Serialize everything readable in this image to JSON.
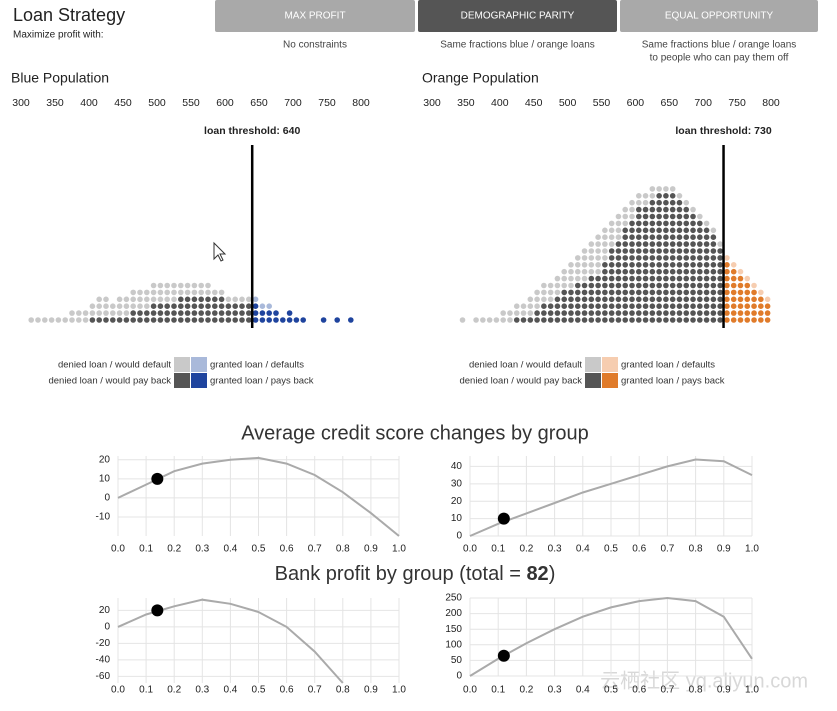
{
  "header": {
    "title": "Loan Strategy",
    "subtitle": "Maximize profit with:"
  },
  "buttons": [
    {
      "label": "MAX PROFIT",
      "description": [
        "No constraints"
      ]
    },
    {
      "label": "DEMOGRAPHIC PARITY",
      "description": [
        "Same fractions blue / orange loans"
      ]
    },
    {
      "label": "EQUAL OPPORTUNITY",
      "description": [
        "Same fractions blue / orange loans",
        "to people who can pay them off"
      ]
    }
  ],
  "active_button": 1,
  "populations": [
    {
      "name": "Blue Population",
      "xlim": [
        300,
        800
      ],
      "xticks": [
        300,
        350,
        400,
        450,
        500,
        550,
        600,
        650,
        700,
        750,
        800
      ],
      "threshold": 640,
      "threshold_label": "loan threshold: 640",
      "scores": [
        315,
        325,
        335,
        345,
        355,
        365,
        375,
        385,
        395,
        405,
        415,
        425,
        435,
        445,
        455,
        465,
        475,
        485,
        495,
        505,
        515,
        525,
        535,
        545,
        555,
        565,
        575,
        585,
        595,
        605,
        615,
        625,
        635,
        645,
        655,
        665,
        675,
        685,
        695,
        705,
        715,
        725,
        735,
        745,
        755,
        765,
        775,
        785
      ],
      "repay": [
        0,
        0,
        0,
        0,
        0,
        0,
        0,
        0,
        0,
        1,
        1,
        1,
        1,
        1,
        1,
        2,
        2,
        2,
        3,
        3,
        3,
        3,
        4,
        4,
        4,
        4,
        4,
        4,
        4,
        3,
        3,
        3,
        3,
        3,
        2,
        2,
        2,
        1,
        2,
        1,
        1,
        0,
        0,
        1,
        0,
        1,
        0,
        1
      ],
      "default": [
        1,
        1,
        1,
        1,
        1,
        1,
        2,
        2,
        2,
        2,
        3,
        3,
        2,
        3,
        3,
        3,
        3,
        3,
        3,
        3,
        3,
        3,
        2,
        2,
        2,
        2,
        2,
        1,
        1,
        1,
        1,
        1,
        1,
        1,
        1,
        1,
        0,
        0,
        0,
        0,
        0,
        0,
        0,
        0,
        0,
        0,
        0,
        0
      ],
      "legend": [
        {
          "label": "denied loan / would default",
          "color": "#c9c9c9"
        },
        {
          "label": "granted loan / defaults",
          "color": "#a9b9da"
        },
        {
          "label": "denied loan / would pay back",
          "color": "#555555"
        },
        {
          "label": "granted loan / pays back",
          "color": "#1f449e"
        }
      ]
    },
    {
      "name": "Orange Population",
      "xlim": [
        300,
        800
      ],
      "xticks": [
        300,
        350,
        400,
        450,
        500,
        550,
        600,
        650,
        700,
        750,
        800
      ],
      "threshold": 730,
      "threshold_label": "loan threshold: 730",
      "scores": [
        345,
        355,
        365,
        375,
        385,
        395,
        405,
        415,
        425,
        435,
        445,
        455,
        465,
        475,
        485,
        495,
        505,
        515,
        525,
        535,
        545,
        555,
        565,
        575,
        585,
        595,
        605,
        615,
        625,
        635,
        645,
        655,
        665,
        675,
        685,
        695,
        705,
        715,
        725,
        735,
        745,
        755,
        765,
        775,
        785,
        795
      ],
      "repay": [
        0,
        0,
        0,
        0,
        0,
        0,
        0,
        0,
        1,
        1,
        1,
        2,
        3,
        3,
        4,
        5,
        5,
        6,
        6,
        7,
        7,
        9,
        11,
        12,
        14,
        15,
        17,
        17,
        18,
        19,
        19,
        19,
        18,
        17,
        16,
        15,
        14,
        13,
        11,
        9,
        8,
        7,
        6,
        5,
        4,
        3
      ],
      "default": [
        1,
        0,
        1,
        1,
        1,
        1,
        2,
        2,
        2,
        2,
        3,
        3,
        3,
        3,
        3,
        3,
        4,
        4,
        5,
        5,
        6,
        5,
        4,
        4,
        3,
        3,
        2,
        2,
        2,
        1,
        1,
        1,
        1,
        1,
        1,
        1,
        1,
        1,
        1,
        1,
        1,
        1,
        1,
        1,
        1,
        1
      ],
      "legend": [
        {
          "label": "denied loan / would default",
          "color": "#c9c9c9"
        },
        {
          "label": "granted loan / defaults",
          "color": "#f6cdb0"
        },
        {
          "label": "denied loan / would pay back",
          "color": "#555555"
        },
        {
          "label": "granted loan / pays back",
          "color": "#e07b2a"
        }
      ]
    }
  ],
  "credit_title": "Average credit score changes by group",
  "profit_title": {
    "prefix": "Bank profit by group (total = ",
    "total": "82",
    "suffix": ")"
  },
  "credit_charts": [
    {
      "type": "line",
      "color": "#aaaaaa",
      "xlim": [
        0,
        1
      ],
      "ylim": [
        -20,
        22
      ],
      "xticks": [
        {
          "value": 0,
          "label": "0.0"
        },
        0.1,
        0.2,
        0.3,
        0.4,
        0.5,
        0.6,
        0.7,
        0.8,
        0.9,
        {
          "value": 1,
          "label": "1.0"
        }
      ],
      "yticks": [
        20,
        10,
        0,
        -10
      ],
      "x": [
        0,
        0.1,
        0.2,
        0.3,
        0.4,
        0.5,
        0.6,
        0.7,
        0.8,
        0.9,
        1
      ],
      "values": [
        0,
        7,
        14,
        18,
        20,
        21,
        18,
        12,
        3,
        -8,
        -20
      ],
      "marker": {
        "x": 0.14,
        "y": 10
      }
    },
    {
      "type": "line",
      "color": "#aaaaaa",
      "xlim": [
        0,
        1
      ],
      "ylim": [
        0,
        46
      ],
      "xticks": [
        {
          "value": 0,
          "label": "0.0"
        },
        0.1,
        0.2,
        0.3,
        0.4,
        0.5,
        0.6,
        0.7,
        0.8,
        0.9,
        {
          "value": 1,
          "label": "1.0"
        }
      ],
      "yticks": [
        40,
        30,
        20,
        10,
        0
      ],
      "x": [
        0,
        0.1,
        0.2,
        0.3,
        0.4,
        0.5,
        0.6,
        0.7,
        0.8,
        0.9,
        1
      ],
      "values": [
        0,
        7,
        13,
        19,
        25,
        30,
        35,
        40,
        44,
        43,
        35
      ],
      "marker": {
        "x": 0.12,
        "y": 10
      }
    }
  ],
  "profit_charts": [
    {
      "type": "line",
      "color": "#aaaaaa",
      "xlim": [
        0,
        1
      ],
      "ylim": [
        -68,
        35
      ],
      "xticks": [
        {
          "value": 0,
          "label": "0.0"
        },
        0.1,
        0.2,
        0.3,
        0.4,
        0.5,
        0.6,
        0.7,
        0.8,
        0.9,
        {
          "value": 1,
          "label": "1.0"
        }
      ],
      "yticks": [
        20,
        0,
        -20,
        -40,
        -60
      ],
      "x": [
        0,
        0.1,
        0.2,
        0.3,
        0.4,
        0.5,
        0.6,
        0.7,
        0.8,
        0.9,
        1
      ],
      "values": [
        0,
        15,
        25,
        33,
        28,
        18,
        0,
        -30,
        -68,
        null,
        null
      ],
      "marker": {
        "x": 0.14,
        "y": 20
      }
    },
    {
      "type": "line",
      "color": "#aaaaaa",
      "xlim": [
        0,
        1
      ],
      "ylim": [
        0,
        250
      ],
      "xticks": [
        {
          "value": 0,
          "label": "0.0"
        },
        0.1,
        0.2,
        0.3,
        0.4,
        0.5,
        0.6,
        0.7,
        0.8,
        0.9,
        {
          "value": 1,
          "label": "1.0"
        }
      ],
      "yticks": [
        250,
        200,
        150,
        100,
        50,
        0
      ],
      "x": [
        0,
        0.1,
        0.2,
        0.3,
        0.4,
        0.5,
        0.6,
        0.7,
        0.8,
        0.9,
        1
      ],
      "values": [
        0,
        55,
        105,
        150,
        190,
        220,
        240,
        250,
        240,
        190,
        55
      ],
      "marker": {
        "x": 0.12,
        "y": 65
      }
    }
  ],
  "watermark": "云栖社区 yq.aliyun.com"
}
